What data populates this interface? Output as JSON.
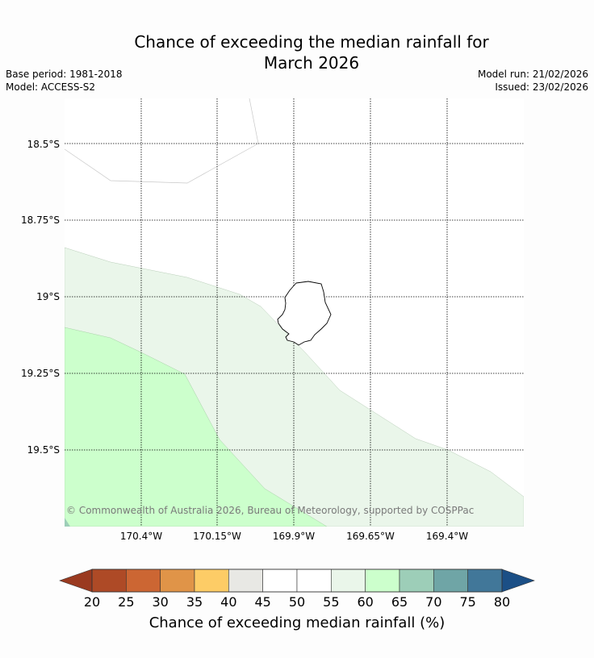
{
  "title_line1": "Chance of exceeding the median rainfall for",
  "title_line2": "March 2026",
  "base_period": "Base period: 1981-2018",
  "model": "Model: ACCESS-S2",
  "model_run": "Model run: 21/02/2026",
  "issued": "Issued: 23/02/2026",
  "copyright": "© Commonwealth of Australia 2026, Bureau of Meteorology, supported by COSPPac",
  "lat_labels": [
    "18.5°S",
    "18.75°S",
    "19°S",
    "19.25°S",
    "19.5°S"
  ],
  "lon_labels": [
    "170.4°W",
    "170.15°W",
    "169.9°W",
    "169.65°W",
    "169.4°W"
  ],
  "colorbar": {
    "label": "Chance of exceeding median rainfall (%)",
    "ticks": [
      "20",
      "25",
      "30",
      "35",
      "40",
      "45",
      "50",
      "55",
      "60",
      "65",
      "70",
      "75",
      "80"
    ],
    "colors": [
      "#ae4a26",
      "#cc6633",
      "#e09448",
      "#fdcc66",
      "#e8e8e4",
      "#ffffff",
      "#ffffff",
      "#eaf6ea",
      "#ccffcc",
      "#9dceb8",
      "#6fa5a6",
      "#417799"
    ],
    "under_color": "#9a3a20",
    "over_color": "#1b4f86"
  }
}
